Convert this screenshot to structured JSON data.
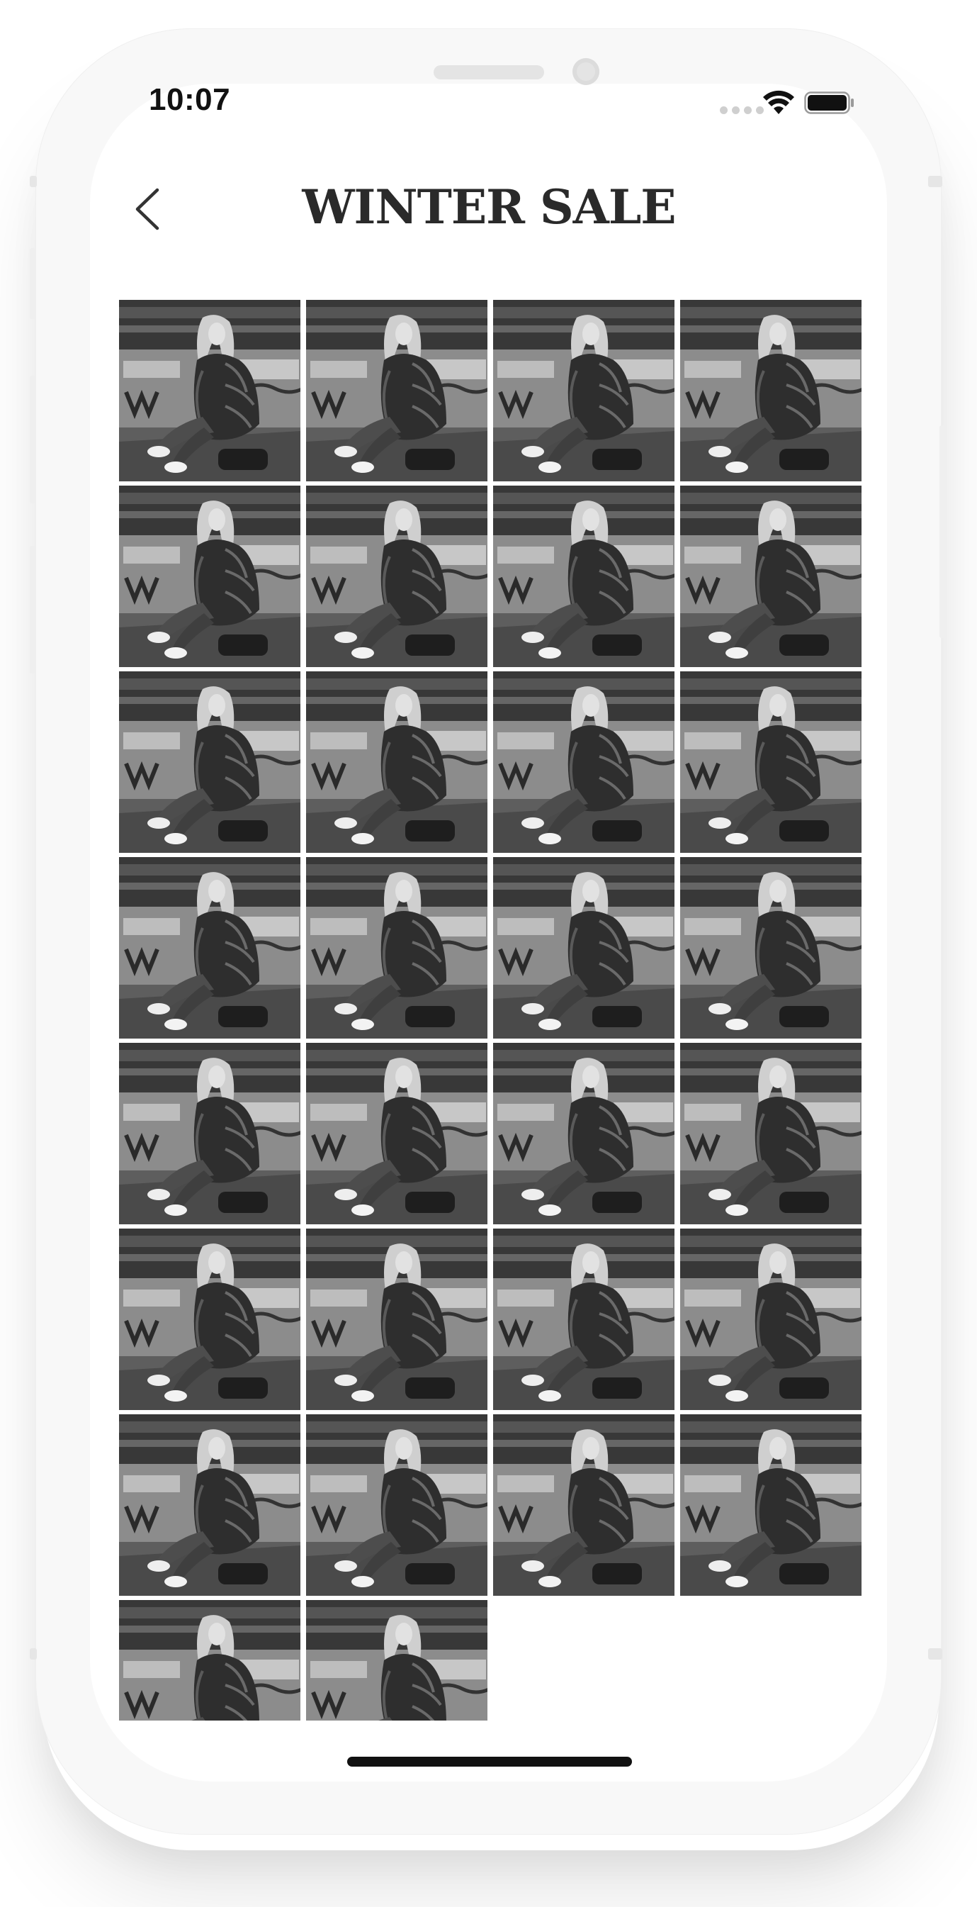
{
  "status_bar": {
    "time": "10:07"
  },
  "header": {
    "title": "WINTER SALE"
  },
  "gallery": {
    "photo_count": 30,
    "full_rows": 7,
    "columns": 4,
    "photo_description": "black-and-white photo of a woman in a puffer jacket sitting against a graffiti wall"
  },
  "icons": {
    "back": "chevron-left-icon",
    "wifi": "wifi-icon",
    "battery": "battery-icon",
    "signal": "signal-dots-icon"
  },
  "colors": {
    "title": "#2a2a2a",
    "background": "#ffffff",
    "photo_tone": "grayscale"
  }
}
